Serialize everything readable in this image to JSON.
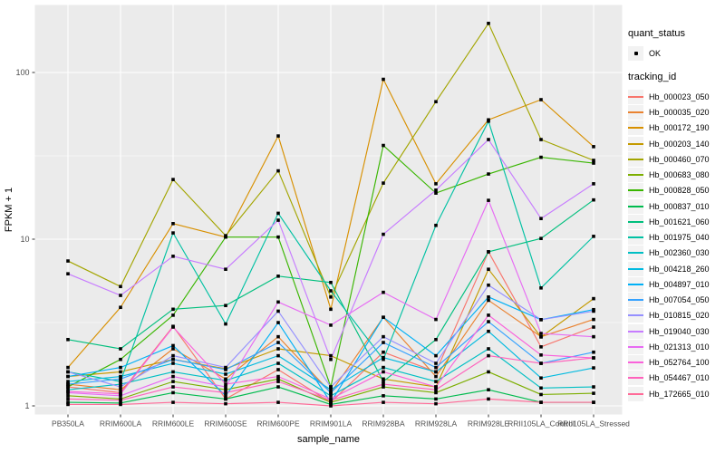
{
  "legend": {
    "quant_status": {
      "title": "quant_status",
      "items": [
        {
          "label": "OK",
          "symbol": "black-point"
        }
      ]
    },
    "tracking_id": {
      "title": "tracking_id"
    }
  },
  "chart_data": {
    "type": "line",
    "title": "",
    "xlabel": "sample_name",
    "ylabel": "FPKM + 1",
    "yscale": "log10",
    "ylim": [
      1,
      250
    ],
    "yticks": [
      1,
      10,
      100
    ],
    "ytick_labels": [
      "1",
      "10",
      "100"
    ],
    "grid": "on",
    "panel_bg": "#EBEBEB",
    "grid_color": "#FFFFFF",
    "legend_key_bg": "#F2F2F2",
    "point_color": "#000000",
    "legend_position": "right",
    "categories": [
      "PB350LA",
      "RRIM600LA",
      "RRIM600LE",
      "RRIM600SE",
      "RRIM600PE",
      "RRIM901LA",
      "RRIM928BA",
      "RRIM928LA",
      "RRIM928LE",
      "RRII105LA_Control",
      "RRII105LA_Stressed"
    ],
    "series": [
      {
        "name": "Hb_000023_050",
        "color": "#F8766D",
        "values": [
          1.3,
          1.2,
          3.0,
          1.1,
          1.65,
          1.05,
          2.1,
          1.6,
          8.4,
          2.26,
          2.97
        ]
      },
      {
        "name": "Hb_000035_020",
        "color": "#EA8331",
        "values": [
          1.35,
          1.25,
          2.2,
          1.45,
          2.6,
          1.2,
          3.4,
          1.5,
          4.3,
          2.6,
          3.3
        ]
      },
      {
        "name": "Hb_000172_190",
        "color": "#D89000",
        "values": [
          1.7,
          3.9,
          12.4,
          10.3,
          41.6,
          3.8,
          91.0,
          21.5,
          52.0,
          68.7,
          35.9
        ]
      },
      {
        "name": "Hb_000203_140",
        "color": "#C49A00",
        "values": [
          1.5,
          1.6,
          1.9,
          1.67,
          2.2,
          2.0,
          1.45,
          1.3,
          6.6,
          2.59,
          4.4
        ]
      },
      {
        "name": "Hb_000460_070",
        "color": "#A3A500",
        "values": [
          7.4,
          5.2,
          22.8,
          10.5,
          25.7,
          4.5,
          21.7,
          66.8,
          197.0,
          39.6,
          29.7
        ]
      },
      {
        "name": "Hb_000683_080",
        "color": "#7CAE00",
        "values": [
          1.15,
          1.1,
          1.4,
          1.25,
          1.45,
          1.05,
          1.3,
          1.2,
          1.6,
          1.17,
          1.19
        ]
      },
      {
        "name": "Hb_000828_050",
        "color": "#39B600",
        "values": [
          1.3,
          1.9,
          3.5,
          10.3,
          10.3,
          1.3,
          36.5,
          18.9,
          24.6,
          31.0,
          28.6
        ]
      },
      {
        "name": "Hb_000837_010",
        "color": "#00BB4E",
        "values": [
          1.05,
          1.04,
          1.2,
          1.1,
          1.3,
          1.02,
          1.15,
          1.1,
          1.25,
          1.05,
          1.05
        ]
      },
      {
        "name": "Hb_001621_060",
        "color": "#00BF7D",
        "values": [
          2.5,
          2.2,
          3.8,
          4.0,
          6.0,
          5.5,
          1.4,
          2.5,
          8.4,
          10.1,
          17.2
        ]
      },
      {
        "name": "Hb_001975_040",
        "color": "#00C1A3",
        "values": [
          1.6,
          1.4,
          10.9,
          3.1,
          14.3,
          4.9,
          1.9,
          12.1,
          51.0,
          5.1,
          10.4
        ]
      },
      {
        "name": "Hb_002360_030",
        "color": "#00BFC4",
        "values": [
          1.25,
          1.35,
          1.6,
          1.42,
          1.8,
          1.15,
          1.7,
          1.4,
          2.2,
          1.28,
          1.3
        ]
      },
      {
        "name": "Hb_004218_260",
        "color": "#00BAE0",
        "values": [
          1.4,
          1.5,
          1.8,
          1.55,
          2.0,
          1.25,
          1.95,
          1.6,
          2.8,
          1.47,
          1.69
        ]
      },
      {
        "name": "Hb_004897_010",
        "color": "#00B0F6",
        "values": [
          1.5,
          1.7,
          2.3,
          1.15,
          3.16,
          1.05,
          3.4,
          2.0,
          4.5,
          3.29,
          3.78
        ]
      },
      {
        "name": "Hb_007054_050",
        "color": "#35A2FF",
        "values": [
          1.35,
          1.45,
          1.9,
          1.65,
          2.4,
          1.2,
          2.4,
          1.7,
          3.2,
          1.8,
          2.1
        ]
      },
      {
        "name": "Hb_010815_020",
        "color": "#9590FF",
        "values": [
          1.6,
          1.3,
          2.0,
          1.7,
          3.7,
          1.3,
          2.6,
          1.8,
          5.3,
          3.29,
          3.7
        ]
      },
      {
        "name": "Hb_019040_030",
        "color": "#C77CFF",
        "values": [
          6.2,
          4.6,
          7.9,
          6.6,
          13.0,
          1.9,
          10.7,
          19.7,
          39.6,
          13.3,
          21.5
        ]
      },
      {
        "name": "Hb_021313_010",
        "color": "#E76BF3",
        "values": [
          1.2,
          1.15,
          1.5,
          1.3,
          4.2,
          3.05,
          4.8,
          3.3,
          17.1,
          2.72,
          2.6
        ]
      },
      {
        "name": "Hb_052764_100",
        "color": "#FA62DB",
        "values": [
          1.22,
          1.18,
          2.97,
          1.35,
          1.5,
          1.1,
          1.6,
          1.3,
          3.5,
          2.02,
          1.94
        ]
      },
      {
        "name": "Hb_054467_010",
        "color": "#FF62BC",
        "values": [
          1.1,
          1.08,
          1.3,
          1.2,
          1.4,
          1.08,
          1.35,
          1.25,
          2.0,
          1.8,
          1.94
        ]
      },
      {
        "name": "Hb_172665_010",
        "color": "#FF6A98",
        "values": [
          1.02,
          1.02,
          1.05,
          1.03,
          1.05,
          1.0,
          1.05,
          1.03,
          1.1,
          1.05,
          1.05
        ]
      }
    ]
  }
}
